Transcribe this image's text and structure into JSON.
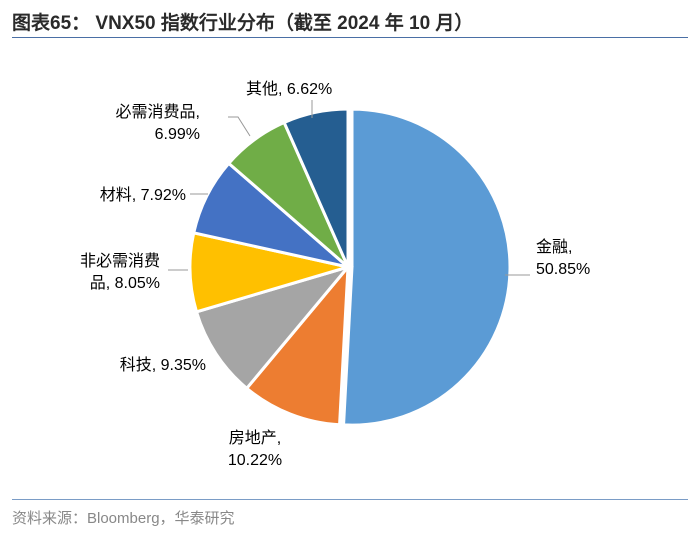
{
  "title": "图表65：  VNX50 指数行业分布（截至 2024 年 10 月）",
  "source": "资料来源：Bloomberg，华泰研究",
  "chart_data": {
    "type": "pie",
    "start_angle_deg": 0,
    "direction": "clockwise",
    "slices": [
      {
        "name": "金融",
        "value": 50.85,
        "pct_label": "50.85%",
        "color": "#5b9bd5"
      },
      {
        "name": "房地产",
        "value": 10.22,
        "pct_label": "10.22%",
        "color": "#ed7d31"
      },
      {
        "name": "科技",
        "value": 9.35,
        "pct_label": "9.35%",
        "color": "#a5a5a5"
      },
      {
        "name": "非必需消费品",
        "value": 8.05,
        "pct_label": "8.05%",
        "color": "#ffc000"
      },
      {
        "name": "材料",
        "value": 7.92,
        "pct_label": "7.92%",
        "color": "#4472c4"
      },
      {
        "name": "必需消费品",
        "value": 6.99,
        "pct_label": "6.99%",
        "color": "#70ad47"
      },
      {
        "name": "其他",
        "value": 6.62,
        "pct_label": "6.62%",
        "color": "#255e91"
      }
    ],
    "labels": [
      {
        "lines": [
          "金融,",
          "50.85%"
        ]
      },
      {
        "lines": [
          "房地产,",
          "10.22%"
        ]
      },
      {
        "lines": [
          "科技, 9.35%"
        ]
      },
      {
        "lines": [
          "非必需消费",
          "品, 8.05%"
        ]
      },
      {
        "lines": [
          "材料, 7.92%"
        ]
      },
      {
        "lines": [
          "必需消费品,",
          "6.99%"
        ]
      },
      {
        "lines": [
          "其他, 6.62%"
        ]
      }
    ]
  }
}
